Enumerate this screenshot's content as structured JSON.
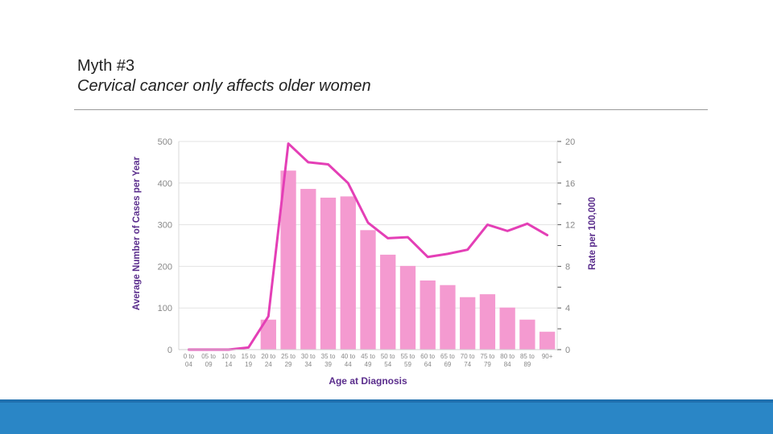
{
  "slide": {
    "title": "Myth #3",
    "subtitle": "Cervical cancer only affects older women"
  },
  "chart_data": {
    "type": "bar+line",
    "categories": [
      [
        "0 to",
        "04"
      ],
      [
        "05 to",
        "09"
      ],
      [
        "10 to",
        "14"
      ],
      [
        "15 to",
        "19"
      ],
      [
        "20 to",
        "24"
      ],
      [
        "25 to",
        "29"
      ],
      [
        "30 to",
        "34"
      ],
      [
        "35 to",
        "39"
      ],
      [
        "40 to",
        "44"
      ],
      [
        "45 to",
        "49"
      ],
      [
        "50 to",
        "54"
      ],
      [
        "55 to",
        "59"
      ],
      [
        "60 to",
        "64"
      ],
      [
        "65 to",
        "69"
      ],
      [
        "70 to",
        "74"
      ],
      [
        "75 to",
        "79"
      ],
      [
        "80 to",
        "84"
      ],
      [
        "85 to",
        "89"
      ],
      [
        "90+",
        ""
      ]
    ],
    "series": [
      {
        "name": "Average Number of Cases per Year",
        "kind": "bar",
        "axis": "left",
        "color": "#f49ad0",
        "values": [
          0,
          0,
          0,
          0,
          72,
          430,
          386,
          365,
          368,
          287,
          228,
          201,
          166,
          155,
          126,
          133,
          101,
          72,
          43
        ]
      },
      {
        "name": "Rate per 100,000",
        "kind": "line",
        "axis": "right",
        "color": "#e43fb6",
        "values": [
          0,
          0,
          0,
          0.2,
          3.2,
          19.8,
          18.0,
          17.8,
          16.0,
          12.2,
          10.7,
          10.8,
          8.9,
          9.2,
          9.6,
          12.0,
          11.4,
          12.1,
          11.0
        ]
      }
    ],
    "xlabel": "Age at Diagnosis",
    "ylabel_left": "Average Number of Cases per Year",
    "ylabel_right": "Rate per 100,000",
    "ylim_left": [
      0,
      500
    ],
    "yticks_left": [
      0,
      100,
      200,
      300,
      400,
      500
    ],
    "ylim_right": [
      0,
      20
    ],
    "yticks_right": [
      0,
      4,
      8,
      12,
      16,
      20
    ],
    "grid": true,
    "axis_label_color": "#5a2d8c",
    "tick_color": "#888888",
    "grid_color": "#e3e3e3"
  }
}
